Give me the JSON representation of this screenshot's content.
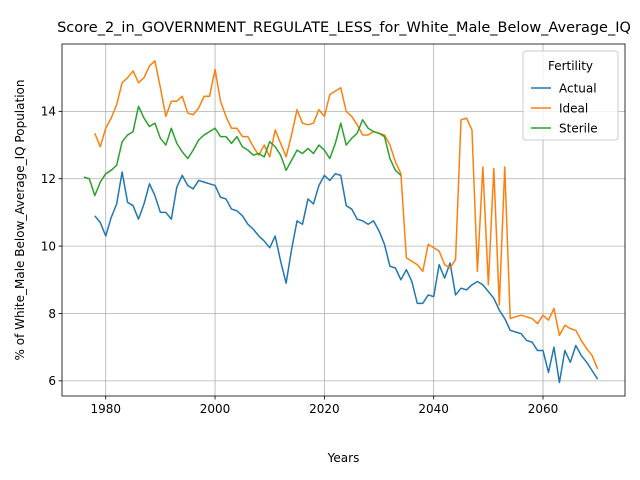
{
  "chart_data": {
    "type": "line",
    "title": "Score_2_in_GOVERNMENT_REGULATE_LESS_for_White_Male_Below_Average_IQ",
    "xlabel": "Years",
    "ylabel": "% of White_Male Below_Average_IQ Population",
    "xlim": [
      1972,
      2075
    ],
    "ylim": [
      5.55,
      16.0
    ],
    "xticks": [
      1980,
      2000,
      2020,
      2040,
      2060
    ],
    "yticks": [
      6,
      8,
      10,
      12,
      14
    ],
    "grid": true,
    "legend": {
      "title": "Fertility",
      "placement": "top-right"
    },
    "series": [
      {
        "name": "Actual",
        "color": "#1f77b4",
        "points": [
          [
            1978,
            10.9
          ],
          [
            1979,
            10.7
          ],
          [
            1980,
            10.3
          ],
          [
            1981,
            10.85
          ],
          [
            1982,
            11.25
          ],
          [
            1983,
            12.2
          ],
          [
            1984,
            11.3
          ],
          [
            1985,
            11.2
          ],
          [
            1986,
            10.8
          ],
          [
            1987,
            11.25
          ],
          [
            1988,
            11.85
          ],
          [
            1989,
            11.5
          ],
          [
            1990,
            11.0
          ],
          [
            1991,
            11.0
          ],
          [
            1992,
            10.8
          ],
          [
            1993,
            11.75
          ],
          [
            1994,
            12.1
          ],
          [
            1995,
            11.8
          ],
          [
            1996,
            11.7
          ],
          [
            1997,
            11.95
          ],
          [
            1998,
            11.9
          ],
          [
            1999,
            11.85
          ],
          [
            2000,
            11.8
          ],
          [
            2001,
            11.45
          ],
          [
            2002,
            11.4
          ],
          [
            2003,
            11.1
          ],
          [
            2004,
            11.05
          ],
          [
            2005,
            10.9
          ],
          [
            2006,
            10.65
          ],
          [
            2007,
            10.5
          ],
          [
            2008,
            10.3
          ],
          [
            2009,
            10.15
          ],
          [
            2010,
            9.95
          ],
          [
            2011,
            10.3
          ],
          [
            2012,
            9.55
          ],
          [
            2013,
            8.9
          ],
          [
            2014,
            9.9
          ],
          [
            2015,
            10.75
          ],
          [
            2016,
            10.65
          ],
          [
            2017,
            11.4
          ],
          [
            2018,
            11.25
          ],
          [
            2019,
            11.8
          ],
          [
            2020,
            12.1
          ],
          [
            2021,
            11.95
          ],
          [
            2022,
            12.15
          ],
          [
            2023,
            12.1
          ],
          [
            2024,
            11.2
          ],
          [
            2025,
            11.1
          ],
          [
            2026,
            10.8
          ],
          [
            2027,
            10.75
          ],
          [
            2028,
            10.65
          ],
          [
            2029,
            10.75
          ],
          [
            2030,
            10.45
          ],
          [
            2031,
            10.05
          ],
          [
            2032,
            9.4
          ],
          [
            2033,
            9.35
          ],
          [
            2034,
            9.0
          ],
          [
            2035,
            9.3
          ],
          [
            2036,
            8.95
          ],
          [
            2037,
            8.3
          ],
          [
            2038,
            8.3
          ],
          [
            2039,
            8.55
          ],
          [
            2040,
            8.5
          ],
          [
            2041,
            9.45
          ],
          [
            2042,
            9.05
          ],
          [
            2043,
            9.5
          ],
          [
            2044,
            8.55
          ],
          [
            2045,
            8.75
          ],
          [
            2046,
            8.7
          ],
          [
            2047,
            8.85
          ],
          [
            2048,
            8.95
          ],
          [
            2049,
            8.85
          ],
          [
            2050,
            8.65
          ],
          [
            2051,
            8.45
          ],
          [
            2052,
            8.1
          ],
          [
            2053,
            7.85
          ],
          [
            2054,
            7.5
          ],
          [
            2055,
            7.45
          ],
          [
            2056,
            7.4
          ],
          [
            2057,
            7.2
          ],
          [
            2058,
            7.15
          ],
          [
            2059,
            6.9
          ],
          [
            2060,
            6.9
          ],
          [
            2061,
            6.25
          ],
          [
            2062,
            7.0
          ],
          [
            2063,
            5.95
          ],
          [
            2064,
            6.9
          ],
          [
            2065,
            6.55
          ],
          [
            2066,
            7.05
          ],
          [
            2067,
            6.75
          ],
          [
            2068,
            6.55
          ],
          [
            2069,
            6.3
          ],
          [
            2070,
            6.05
          ]
        ]
      },
      {
        "name": "Ideal",
        "color": "#ff7f0e",
        "points": [
          [
            1978,
            13.35
          ],
          [
            1979,
            12.95
          ],
          [
            1980,
            13.5
          ],
          [
            1981,
            13.8
          ],
          [
            1982,
            14.2
          ],
          [
            1983,
            14.85
          ],
          [
            1984,
            15.0
          ],
          [
            1985,
            15.2
          ],
          [
            1986,
            14.85
          ],
          [
            1987,
            15.0
          ],
          [
            1988,
            15.35
          ],
          [
            1989,
            15.5
          ],
          [
            1990,
            14.7
          ],
          [
            1991,
            13.85
          ],
          [
            1992,
            14.3
          ],
          [
            1993,
            14.3
          ],
          [
            1994,
            14.45
          ],
          [
            1995,
            13.95
          ],
          [
            1996,
            13.9
          ],
          [
            1997,
            14.1
          ],
          [
            1998,
            14.45
          ],
          [
            1999,
            14.45
          ],
          [
            2000,
            15.25
          ],
          [
            2001,
            14.3
          ],
          [
            2002,
            13.85
          ],
          [
            2003,
            13.5
          ],
          [
            2004,
            13.5
          ],
          [
            2005,
            13.25
          ],
          [
            2006,
            13.25
          ],
          [
            2007,
            12.95
          ],
          [
            2008,
            12.7
          ],
          [
            2009,
            13.0
          ],
          [
            2010,
            12.65
          ],
          [
            2011,
            13.45
          ],
          [
            2012,
            13.05
          ],
          [
            2013,
            12.65
          ],
          [
            2014,
            13.3
          ],
          [
            2015,
            14.05
          ],
          [
            2016,
            13.65
          ],
          [
            2017,
            13.6
          ],
          [
            2018,
            13.65
          ],
          [
            2019,
            14.05
          ],
          [
            2020,
            13.85
          ],
          [
            2021,
            14.5
          ],
          [
            2022,
            14.6
          ],
          [
            2023,
            14.7
          ],
          [
            2024,
            14.0
          ],
          [
            2025,
            13.85
          ],
          [
            2026,
            13.6
          ],
          [
            2027,
            13.3
          ],
          [
            2028,
            13.3
          ],
          [
            2029,
            13.4
          ],
          [
            2030,
            13.35
          ],
          [
            2031,
            13.3
          ],
          [
            2032,
            13.0
          ],
          [
            2033,
            12.5
          ],
          [
            2034,
            12.15
          ],
          [
            2035,
            9.65
          ],
          [
            2036,
            9.55
          ],
          [
            2037,
            9.45
          ],
          [
            2038,
            9.25
          ],
          [
            2039,
            10.05
          ],
          [
            2040,
            9.95
          ],
          [
            2041,
            9.85
          ],
          [
            2042,
            9.45
          ],
          [
            2043,
            9.35
          ],
          [
            2044,
            9.6
          ],
          [
            2045,
            13.75
          ],
          [
            2046,
            13.8
          ],
          [
            2047,
            13.45
          ],
          [
            2048,
            9.25
          ],
          [
            2049,
            12.35
          ],
          [
            2050,
            8.85
          ],
          [
            2051,
            12.3
          ],
          [
            2052,
            8.25
          ],
          [
            2053,
            12.35
          ],
          [
            2054,
            7.85
          ],
          [
            2055,
            7.9
          ],
          [
            2056,
            7.95
          ],
          [
            2057,
            7.9
          ],
          [
            2058,
            7.85
          ],
          [
            2059,
            7.7
          ],
          [
            2060,
            7.95
          ],
          [
            2061,
            7.8
          ],
          [
            2062,
            8.15
          ],
          [
            2063,
            7.35
          ],
          [
            2064,
            7.65
          ],
          [
            2065,
            7.55
          ],
          [
            2066,
            7.5
          ],
          [
            2067,
            7.2
          ],
          [
            2068,
            6.95
          ],
          [
            2069,
            6.75
          ],
          [
            2070,
            6.35
          ]
        ]
      },
      {
        "name": "Sterile",
        "color": "#2ca02c",
        "points": [
          [
            1976,
            12.05
          ],
          [
            1977,
            12.0
          ],
          [
            1978,
            11.5
          ],
          [
            1979,
            11.9
          ],
          [
            1980,
            12.15
          ],
          [
            1981,
            12.25
          ],
          [
            1982,
            12.4
          ],
          [
            1983,
            13.1
          ],
          [
            1984,
            13.3
          ],
          [
            1985,
            13.4
          ],
          [
            1986,
            14.15
          ],
          [
            1987,
            13.8
          ],
          [
            1988,
            13.55
          ],
          [
            1989,
            13.65
          ],
          [
            1990,
            13.2
          ],
          [
            1991,
            13.0
          ],
          [
            1992,
            13.5
          ],
          [
            1993,
            13.05
          ],
          [
            1994,
            12.8
          ],
          [
            1995,
            12.6
          ],
          [
            1996,
            12.85
          ],
          [
            1997,
            13.15
          ],
          [
            1998,
            13.3
          ],
          [
            1999,
            13.4
          ],
          [
            2000,
            13.5
          ],
          [
            2001,
            13.25
          ],
          [
            2002,
            13.25
          ],
          [
            2003,
            13.05
          ],
          [
            2004,
            13.25
          ],
          [
            2005,
            12.95
          ],
          [
            2006,
            12.85
          ],
          [
            2007,
            12.7
          ],
          [
            2008,
            12.75
          ],
          [
            2009,
            12.65
          ],
          [
            2010,
            13.1
          ],
          [
            2011,
            12.95
          ],
          [
            2012,
            12.7
          ],
          [
            2013,
            12.25
          ],
          [
            2014,
            12.55
          ],
          [
            2015,
            12.85
          ],
          [
            2016,
            12.75
          ],
          [
            2017,
            12.9
          ],
          [
            2018,
            12.75
          ],
          [
            2019,
            13.0
          ],
          [
            2020,
            12.85
          ],
          [
            2021,
            12.6
          ],
          [
            2022,
            13.05
          ],
          [
            2023,
            13.65
          ],
          [
            2024,
            13.0
          ],
          [
            2025,
            13.2
          ],
          [
            2026,
            13.35
          ],
          [
            2027,
            13.75
          ],
          [
            2028,
            13.5
          ],
          [
            2029,
            13.4
          ],
          [
            2030,
            13.35
          ],
          [
            2031,
            13.25
          ],
          [
            2032,
            12.6
          ],
          [
            2033,
            12.25
          ],
          [
            2034,
            12.1
          ]
        ]
      }
    ]
  }
}
